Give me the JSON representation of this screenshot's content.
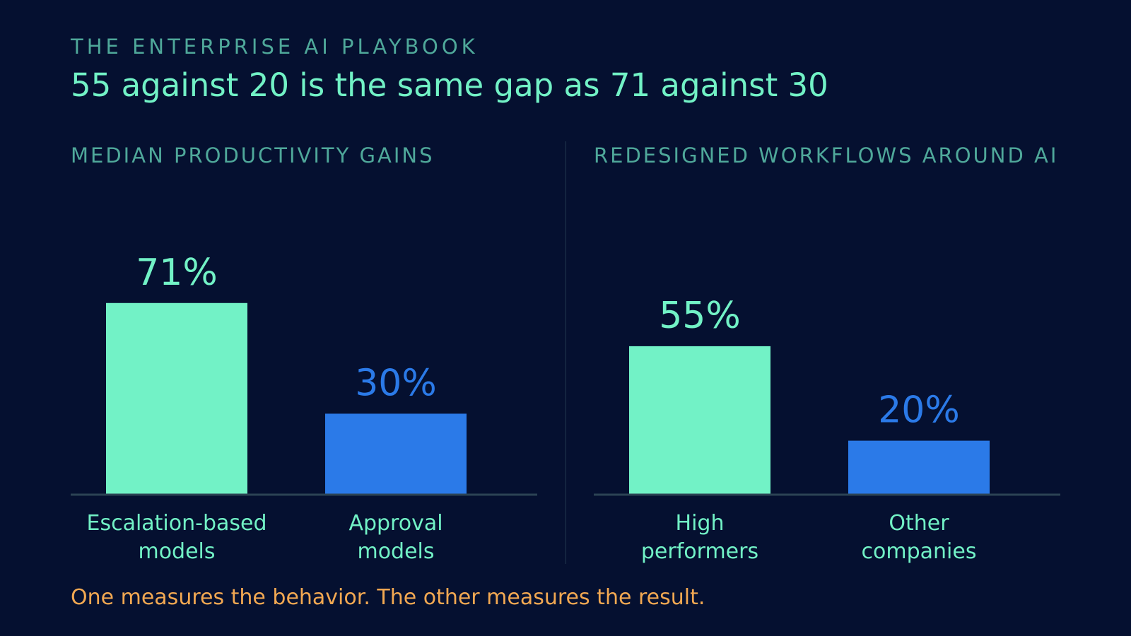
{
  "kicker": "THE ENTERPRISE AI PLAYBOOK",
  "headline": "55 against 20 is the same gap as 71 against 30",
  "takeaway": "One measures the behavior. The other measures the result.",
  "colors": {
    "background": "#051030",
    "primary": "#72f2c6",
    "secondary": "#2b7ae8",
    "panel_title": "#4fa89a",
    "axis": "#2c4354",
    "takeaway": "#f2a852"
  },
  "chart_data": [
    {
      "type": "bar",
      "title": "MEDIAN PRODUCTIVITY GAINS",
      "categories": [
        [
          "Escalation-based",
          "models"
        ],
        [
          "Approval",
          "models"
        ]
      ],
      "values": [
        71,
        30
      ],
      "value_labels": [
        "71%",
        "30%"
      ],
      "unit": "%",
      "ylim": [
        0,
        100
      ],
      "grid": false
    },
    {
      "type": "bar",
      "title": "REDESIGNED WORKFLOWS AROUND AI",
      "categories": [
        [
          "High",
          "performers"
        ],
        [
          "Other",
          "companies"
        ]
      ],
      "values": [
        55,
        20
      ],
      "value_labels": [
        "55%",
        "20%"
      ],
      "unit": "%",
      "ylim": [
        0,
        100
      ],
      "grid": false
    }
  ]
}
